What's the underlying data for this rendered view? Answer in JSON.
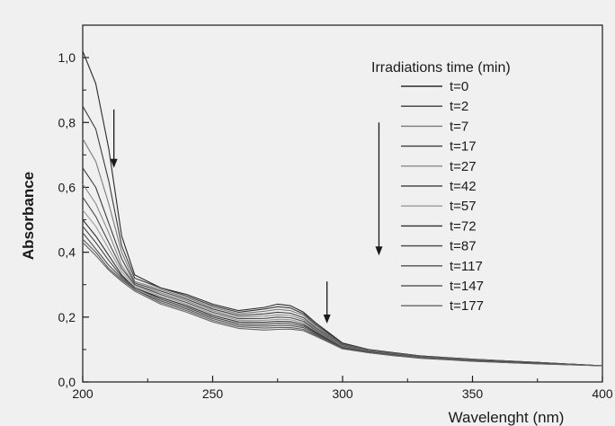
{
  "chart_data": {
    "type": "line",
    "title": "",
    "xlabel": "Wavelenght (nm)",
    "ylabel": "Absorbance",
    "xlim": [
      200,
      400
    ],
    "ylim": [
      0,
      1.1
    ],
    "x_ticks": [
      200,
      250,
      300,
      350,
      400
    ],
    "y_ticks": [
      0.0,
      0.2,
      0.4,
      0.6,
      0.8,
      1.0
    ],
    "x_tick_labels": [
      "200",
      "250",
      "300",
      "350",
      "400"
    ],
    "y_tick_labels": [
      "0,0",
      "0,2",
      "0,4",
      "0,6",
      "0,8",
      "1,0"
    ],
    "legend_title": "Irradiations time (min)",
    "legend_position": "top-right",
    "x": [
      200,
      205,
      210,
      215,
      220,
      230,
      240,
      250,
      260,
      270,
      275,
      280,
      285,
      290,
      300,
      310,
      320,
      330,
      350,
      375,
      400
    ],
    "series": [
      {
        "name": "t=0",
        "color": "#2a2a2a",
        "values": [
          1.02,
          0.92,
          0.72,
          0.45,
          0.33,
          0.29,
          0.27,
          0.24,
          0.22,
          0.23,
          0.24,
          0.235,
          0.215,
          0.18,
          0.12,
          0.1,
          0.09,
          0.08,
          0.07,
          0.06,
          0.05
        ]
      },
      {
        "name": "t=2",
        "color": "#3a3a3a",
        "values": [
          0.85,
          0.78,
          0.62,
          0.42,
          0.32,
          0.29,
          0.265,
          0.235,
          0.215,
          0.225,
          0.232,
          0.228,
          0.21,
          0.175,
          0.118,
          0.1,
          0.09,
          0.08,
          0.07,
          0.06,
          0.05
        ]
      },
      {
        "name": "t=7",
        "color": "#7a7a7a",
        "values": [
          0.75,
          0.68,
          0.55,
          0.4,
          0.31,
          0.285,
          0.26,
          0.23,
          0.21,
          0.218,
          0.224,
          0.22,
          0.205,
          0.17,
          0.116,
          0.098,
          0.088,
          0.079,
          0.069,
          0.06,
          0.05
        ]
      },
      {
        "name": "t=17",
        "color": "#3d3d3d",
        "values": [
          0.66,
          0.6,
          0.49,
          0.38,
          0.305,
          0.28,
          0.255,
          0.225,
          0.205,
          0.21,
          0.215,
          0.212,
          0.198,
          0.165,
          0.114,
          0.097,
          0.087,
          0.078,
          0.068,
          0.06,
          0.05
        ]
      },
      {
        "name": "t=27",
        "color": "#8a8a8a",
        "values": [
          0.61,
          0.55,
          0.46,
          0.36,
          0.3,
          0.275,
          0.25,
          0.22,
          0.2,
          0.203,
          0.207,
          0.205,
          0.192,
          0.162,
          0.112,
          0.096,
          0.086,
          0.077,
          0.068,
          0.059,
          0.05
        ]
      },
      {
        "name": "t=42",
        "color": "#4a4a4a",
        "values": [
          0.57,
          0.51,
          0.43,
          0.35,
          0.3,
          0.27,
          0.245,
          0.215,
          0.195,
          0.196,
          0.2,
          0.198,
          0.187,
          0.158,
          0.11,
          0.095,
          0.085,
          0.077,
          0.067,
          0.059,
          0.05
        ]
      },
      {
        "name": "t=57",
        "color": "#9a9a9a",
        "values": [
          0.53,
          0.48,
          0.41,
          0.34,
          0.295,
          0.265,
          0.24,
          0.21,
          0.19,
          0.19,
          0.193,
          0.192,
          0.182,
          0.155,
          0.108,
          0.094,
          0.084,
          0.076,
          0.066,
          0.058,
          0.05
        ]
      },
      {
        "name": "t=72",
        "color": "#2f2f2f",
        "values": [
          0.5,
          0.45,
          0.39,
          0.33,
          0.29,
          0.26,
          0.235,
          0.205,
          0.185,
          0.184,
          0.187,
          0.186,
          0.177,
          0.152,
          0.106,
          0.093,
          0.083,
          0.075,
          0.066,
          0.058,
          0.05
        ]
      },
      {
        "name": "t=87",
        "color": "#444444",
        "values": [
          0.48,
          0.43,
          0.375,
          0.325,
          0.29,
          0.255,
          0.23,
          0.2,
          0.18,
          0.178,
          0.181,
          0.18,
          0.172,
          0.149,
          0.105,
          0.092,
          0.083,
          0.075,
          0.065,
          0.057,
          0.05
        ]
      },
      {
        "name": "t=117",
        "color": "#505050",
        "values": [
          0.46,
          0.41,
          0.36,
          0.32,
          0.285,
          0.25,
          0.225,
          0.195,
          0.175,
          0.172,
          0.174,
          0.174,
          0.167,
          0.146,
          0.104,
          0.091,
          0.082,
          0.074,
          0.065,
          0.057,
          0.05
        ]
      },
      {
        "name": "t=147",
        "color": "#5c5c5c",
        "values": [
          0.44,
          0.4,
          0.35,
          0.315,
          0.285,
          0.245,
          0.22,
          0.19,
          0.17,
          0.166,
          0.168,
          0.168,
          0.162,
          0.143,
          0.103,
          0.09,
          0.081,
          0.074,
          0.064,
          0.056,
          0.05
        ]
      },
      {
        "name": "t=177",
        "color": "#666666",
        "values": [
          0.43,
          0.39,
          0.345,
          0.31,
          0.28,
          0.24,
          0.215,
          0.185,
          0.165,
          0.16,
          0.162,
          0.163,
          0.158,
          0.14,
          0.102,
          0.09,
          0.081,
          0.073,
          0.064,
          0.056,
          0.05
        ]
      }
    ],
    "annotations": [
      {
        "type": "arrow",
        "x": 212,
        "y_from": 0.84,
        "y_to": 0.66,
        "direction": "down"
      },
      {
        "type": "arrow",
        "x": 314,
        "y_from": 0.8,
        "y_to": 0.39,
        "direction": "down"
      },
      {
        "type": "arrow",
        "x": 294,
        "y_from": 0.31,
        "y_to": 0.18,
        "direction": "down"
      }
    ],
    "grid": false
  }
}
